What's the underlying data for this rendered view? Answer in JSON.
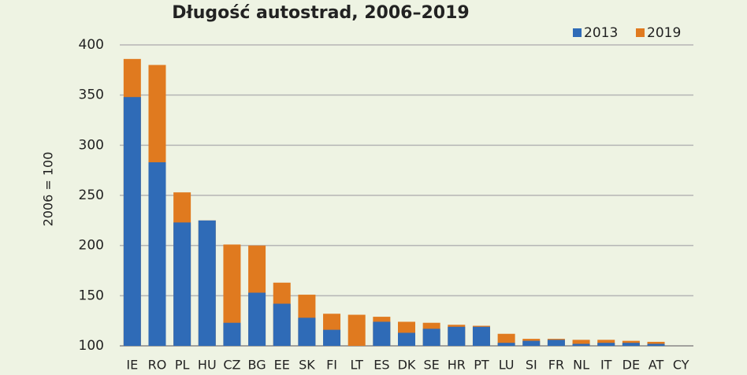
{
  "chart_data": {
    "type": "bar",
    "title": "Długość autostrad, 2006–2019",
    "y_label": "2006 = 100",
    "categories": [
      "IE",
      "RO",
      "PL",
      "HU",
      "CZ",
      "BG",
      "EE",
      "SK",
      "FI",
      "LT",
      "ES",
      "DK",
      "SE",
      "HR",
      "PT",
      "LU",
      "SI",
      "FR",
      "NL",
      "IT",
      "DE",
      "AT",
      "CY"
    ],
    "series": [
      {
        "name": "2019",
        "color": "#e07a1f",
        "values": [
          386,
          380,
          253,
          225,
          201,
          200,
          163,
          151,
          132,
          131,
          129,
          124,
          123,
          121,
          120,
          112,
          107,
          107,
          106,
          106,
          105,
          104,
          null
        ]
      },
      {
        "name": "2013",
        "color": "#2f6bb7",
        "values": [
          348,
          283,
          223,
          225,
          123,
          153,
          142,
          128,
          116,
          null,
          124,
          113,
          117,
          119,
          119,
          103,
          105,
          106,
          102,
          103,
          103,
          102,
          null
        ]
      }
    ],
    "ylim": [
      100,
      400
    ],
    "yticks": [
      100,
      150,
      200,
      250,
      300,
      350,
      400
    ],
    "grid": true,
    "legend": "top-right"
  }
}
